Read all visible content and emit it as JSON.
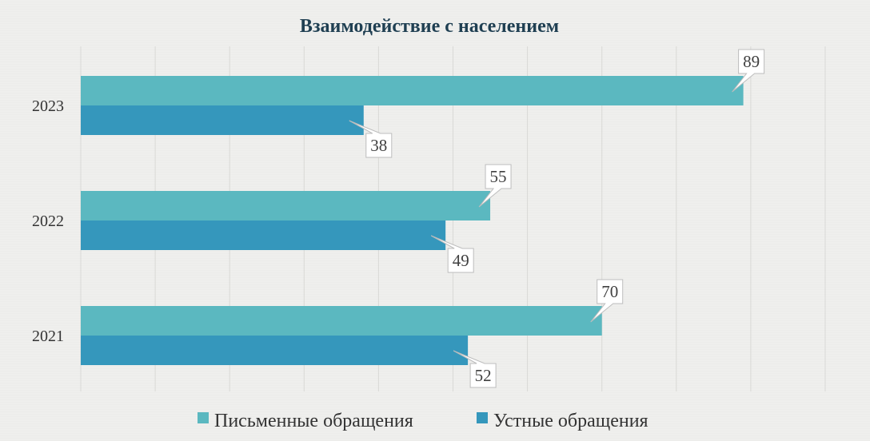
{
  "chart_data": {
    "type": "bar",
    "orientation": "horizontal",
    "title": "Взаимодействие с населением",
    "categories": [
      "2023",
      "2022",
      "2021"
    ],
    "series": [
      {
        "name": "Письменные обращения",
        "values": [
          89,
          55,
          70
        ],
        "color": "#5bb8c0"
      },
      {
        "name": "Устные обращения",
        "values": [
          38,
          49,
          52
        ],
        "color": "#3597bc"
      }
    ],
    "xlim": [
      0,
      100
    ],
    "xlabel": "",
    "ylabel": "",
    "grid": "vertical",
    "legend_position": "bottom"
  }
}
